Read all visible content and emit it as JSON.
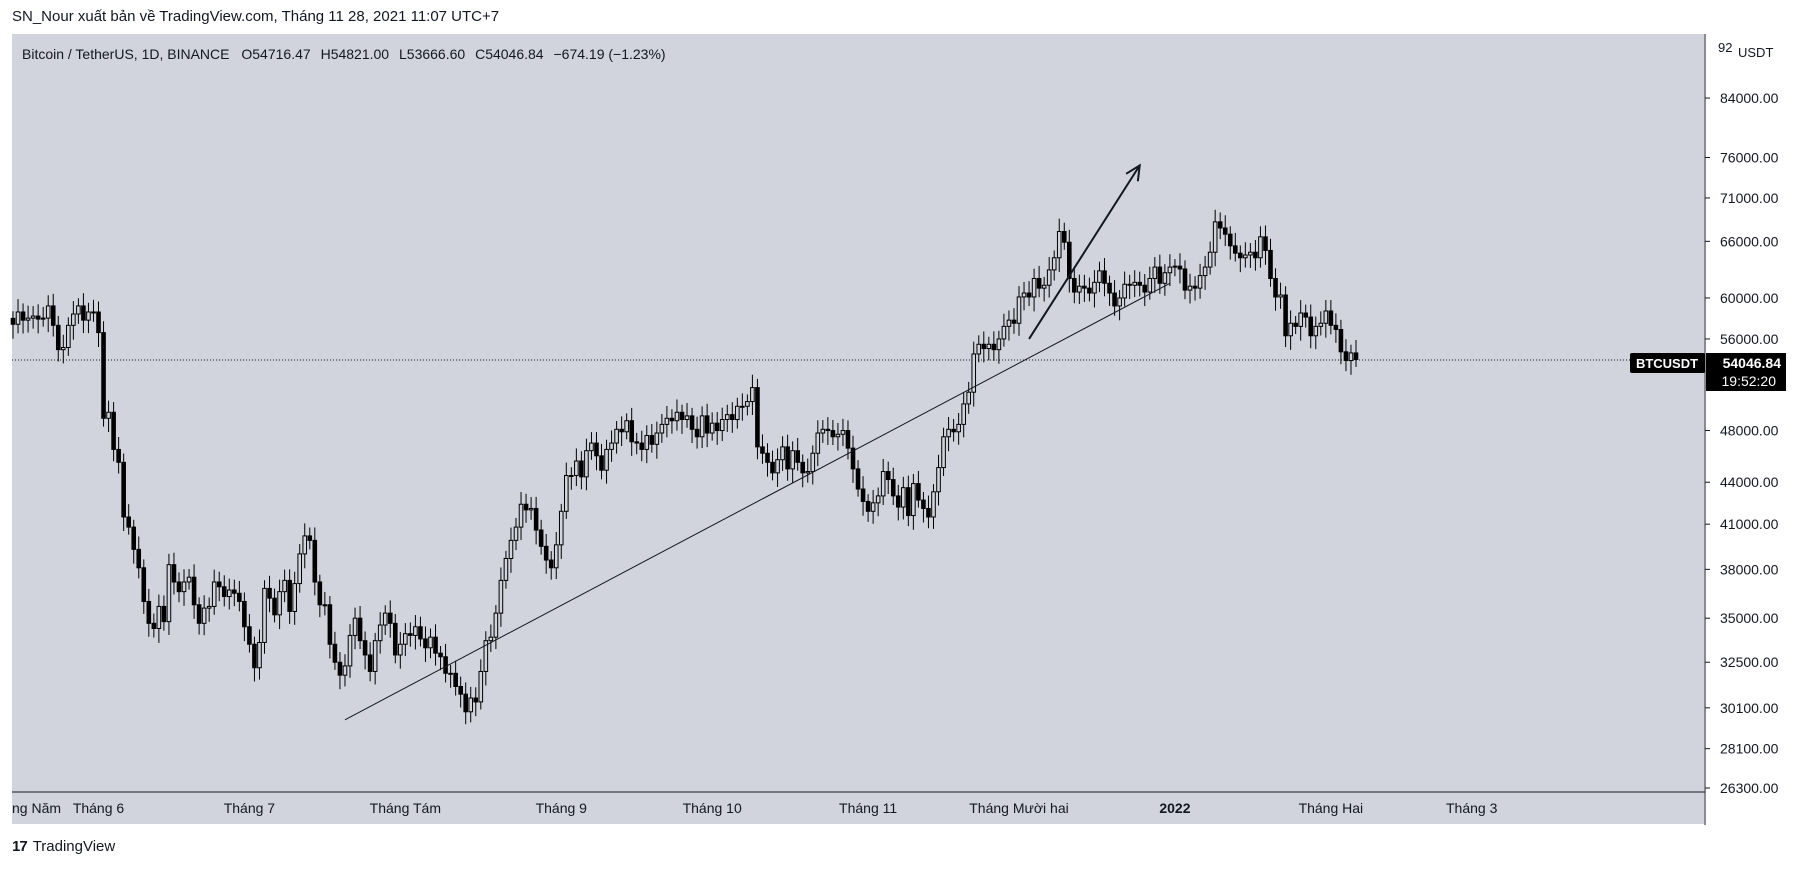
{
  "header": {
    "published_by": "SN_Nour xuất bản về TradingView.com, Tháng 11 28, 2021 11:07 UTC+7"
  },
  "footer": {
    "brand": "TradingView",
    "logo_mark": "17"
  },
  "symbol_info": {
    "name": "Bitcoin / TetherUS, 1D, BINANCE",
    "open_label": "O",
    "open": "54716.47",
    "high_label": "H",
    "high": "54821.00",
    "low_label": "L",
    "low": "53666.60",
    "close_label": "C",
    "close": "54046.84",
    "change": "−674.19 (−1.23%)"
  },
  "price_scale": {
    "currency": "USDT",
    "top_partial": "92"
  },
  "last_price": {
    "ticker": "BTCUSDT",
    "price": "54046.84",
    "countdown": "19:52:20"
  },
  "colors": {
    "background": "#d1d4dc",
    "candle": "#000000",
    "text": "#131722",
    "label_bg": "#000000"
  },
  "chart_data": {
    "type": "candlestick",
    "interval": "1D",
    "exchange": "BINANCE",
    "symbol": "BTCUSDT",
    "scale": "log",
    "ylim": [
      26300,
      92000
    ],
    "y_ticks": [
      26300,
      28100,
      30100,
      32500,
      35000,
      38000,
      41000,
      44000,
      48000,
      56000,
      60000,
      66000,
      71000,
      76000,
      84000
    ],
    "x_start": "2021-05-15",
    "x_ticks": [
      {
        "label": "ng Năm",
        "date": "2021-05-01"
      },
      {
        "label": "Tháng 6",
        "date": "2021-06-01"
      },
      {
        "label": "Tháng 7",
        "date": "2021-07-01"
      },
      {
        "label": "Tháng Tám",
        "date": "2021-08-01"
      },
      {
        "label": "Tháng 9",
        "date": "2021-09-01"
      },
      {
        "label": "Tháng 10",
        "date": "2021-10-01"
      },
      {
        "label": "Tháng 11",
        "date": "2021-11-01"
      },
      {
        "label": "Tháng Mười hai",
        "date": "2021-12-01"
      },
      {
        "label": "2022",
        "date": "2022-01-01",
        "bold": true
      },
      {
        "label": "Tháng Hai",
        "date": "2022-02-01"
      },
      {
        "label": "Tháng 3",
        "date": "2022-03-01"
      }
    ],
    "close_series": [
      57400,
      58600,
      57800,
      58000,
      58200,
      57900,
      58000,
      59200,
      57300,
      55000,
      55200,
      57300,
      58400,
      59200,
      57800,
      58600,
      58600,
      56600,
      49000,
      49500,
      46500,
      45500,
      41500,
      40800,
      39300,
      38100,
      36000,
      34700,
      34400,
      35700,
      34800,
      38300,
      37200,
      36600,
      37200,
      37500,
      35800,
      34700,
      35600,
      35700,
      37200,
      36900,
      36300,
      36700,
      36500,
      36000,
      34500,
      33500,
      32200,
      33600,
      36800,
      36200,
      35200,
      36600,
      37300,
      35400,
      37100,
      39000,
      40200,
      39900,
      37200,
      35800,
      35800,
      33500,
      32500,
      31800,
      32300,
      34000,
      35000,
      33700,
      32900,
      32000,
      33700,
      34600,
      35300,
      34700,
      32900,
      33500,
      34100,
      34000,
      34500,
      33800,
      33300,
      33900,
      33000,
      32800,
      31900,
      31900,
      31200,
      30800,
      29900,
      30600,
      30400,
      32000,
      33700,
      33900,
      35300,
      37300,
      38700,
      39900,
      40800,
      42400,
      42000,
      42100,
      40600,
      39500,
      38600,
      38100,
      39600,
      41900,
      44500,
      44500,
      45600,
      44400,
      46400,
      47000,
      46000,
      44900,
      46500,
      47000,
      48100,
      47900,
      48800,
      47100,
      47000,
      46500,
      47600,
      46900,
      47800,
      48500,
      49000,
      48800,
      49500,
      48900,
      49200,
      48100,
      47500,
      49200,
      47800,
      48600,
      48000,
      48900,
      49300,
      48900,
      50000,
      50000,
      50400,
      51600,
      46700,
      46200,
      45500,
      44700,
      45700,
      46700,
      45000,
      46400,
      45500,
      44700,
      44800,
      46200,
      47800,
      48100,
      48000,
      47500,
      47700,
      48000,
      46600,
      45000,
      43500,
      42600,
      41900,
      42500,
      43000,
      44800,
      44200,
      43000,
      42200,
      43600,
      41600,
      43900,
      42700,
      42100,
      41500,
      43300,
      45100,
      47500,
      48100,
      47900,
      48500,
      50200,
      51200,
      54600,
      55500,
      55100,
      55500,
      55000,
      56000,
      57200,
      57800,
      57500,
      60100,
      60500,
      60100,
      62000,
      61000,
      61300,
      62900,
      64200,
      67100,
      65900,
      62000,
      60600,
      61200,
      61000,
      60500,
      61600,
      62800,
      61500,
      60500,
      59200,
      60000,
      61400,
      61300,
      61600,
      61300,
      60600,
      62000,
      63200,
      61500,
      62600,
      63200,
      63300,
      63000,
      60800,
      61200,
      61000,
      62300,
      63200,
      64800,
      68200,
      67500,
      66800,
      65500,
      64700,
      64200,
      64500,
      64800,
      64200,
      66500,
      65000,
      62000,
      60100,
      60300,
      56300,
      57500,
      57200,
      58500,
      58100,
      56300,
      57200,
      57500,
      58700,
      57300,
      56900,
      54800,
      54000,
      54700,
      54100
    ],
    "annotations": {
      "trendline": {
        "from": {
          "date": "2021-07-20",
          "price": 29500
        },
        "to": {
          "date": "2021-12-31",
          "price": 61500
        }
      },
      "arrow": {
        "from": {
          "date": "2021-12-03",
          "price": 56000
        },
        "to": {
          "date": "2021-12-25",
          "price": 75000
        }
      }
    },
    "last_price_line": 54046.84
  }
}
